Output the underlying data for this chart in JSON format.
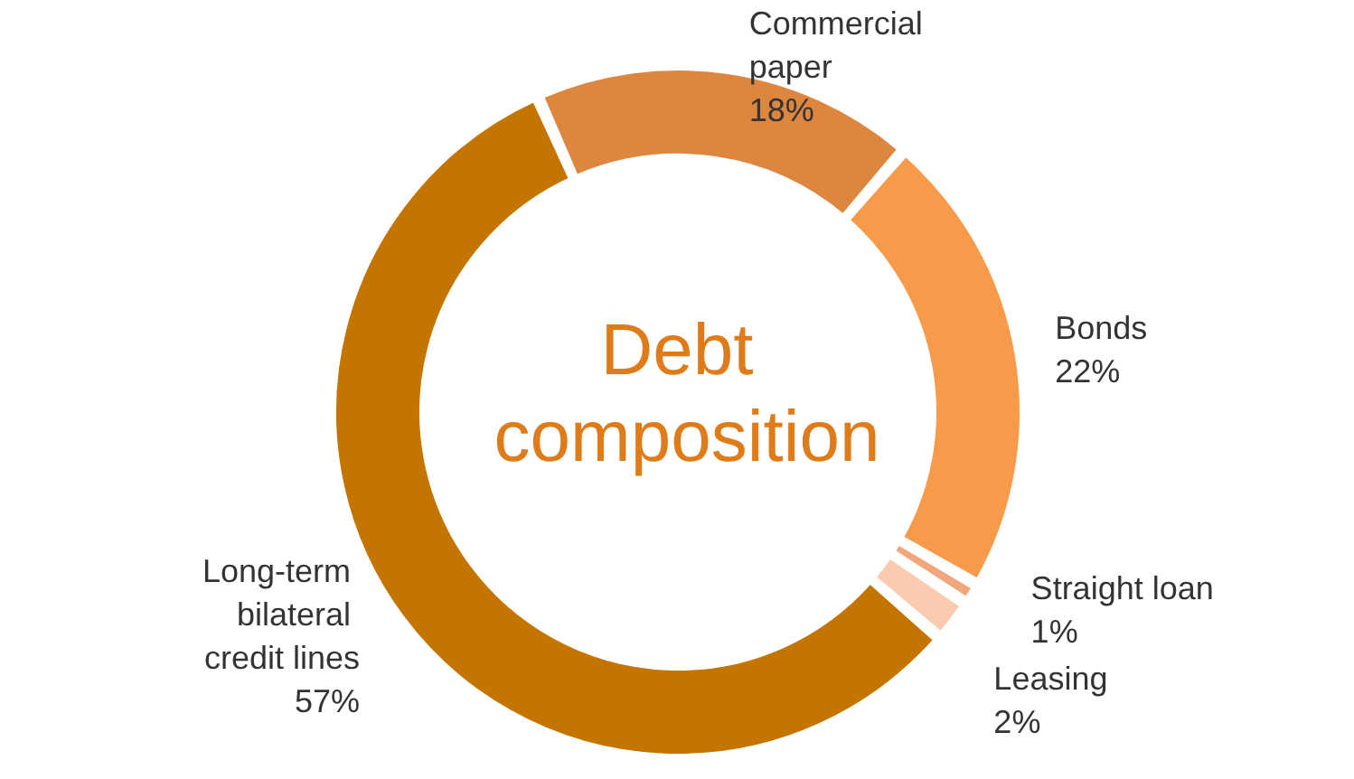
{
  "chart_data": {
    "type": "donut",
    "title": "Debt composition",
    "categories": [
      "Commercial paper",
      "Bonds",
      "Straight loan",
      "Leasing",
      "Long-term bilateral credit lines"
    ],
    "values": [
      18,
      22,
      1,
      2,
      57
    ],
    "value_labels": [
      "18%",
      "22%",
      "1%",
      "2%",
      "57%"
    ],
    "colors": [
      "#dd8640",
      "#f79a4a",
      "#f2a67c",
      "#fbcbb0",
      "#c47500"
    ],
    "legend": false
  }
}
